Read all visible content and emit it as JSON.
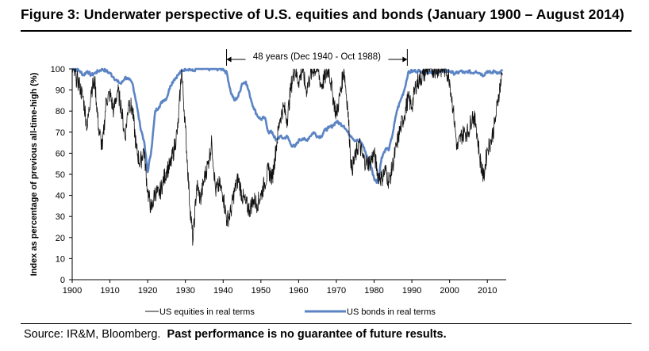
{
  "figure": {
    "title": "Figure 3: Underwater perspective of U.S. equities and bonds (January 1900 – August 2014)"
  },
  "source": {
    "prefix": "Source: IR&M, Bloomberg.",
    "disclaimer": "Past performance is no guarantee of future results."
  },
  "colors": {
    "equities": "#111111",
    "bonds": "#5b84c4",
    "axis": "#000000"
  },
  "chart_data": {
    "type": "line",
    "title": "Underwater perspective of U.S. equities and bonds (January 1900 – August 2014)",
    "xlabel": "",
    "ylabel": "Index as percentage of previous all-time-high (%)",
    "xlim": [
      1900,
      2015
    ],
    "ylim": [
      0,
      100
    ],
    "x_ticks": [
      1900,
      1910,
      1920,
      1930,
      1940,
      1950,
      1960,
      1970,
      1980,
      1990,
      2000,
      2010
    ],
    "y_ticks": [
      0,
      10,
      20,
      30,
      40,
      50,
      60,
      70,
      80,
      90,
      100
    ],
    "grid": false,
    "legend_position": "bottom",
    "annotation": {
      "text": "48 years (Dec 1940 - Oct 1988)",
      "x_start": 1940.9,
      "x_end": 1988.8
    },
    "series": [
      {
        "name": "US equities in real terms",
        "key": "equities",
        "x": [
          1900,
          1901,
          1902,
          1903,
          1904,
          1905,
          1906,
          1907,
          1908,
          1909,
          1910,
          1911,
          1912,
          1913,
          1914,
          1915,
          1916,
          1917,
          1918,
          1919,
          1920,
          1921,
          1922,
          1923,
          1924,
          1925,
          1926,
          1927,
          1928,
          1929,
          1930,
          1931,
          1932,
          1933,
          1934,
          1935,
          1936,
          1937,
          1938,
          1939,
          1940,
          1941,
          1942,
          1943,
          1944,
          1945,
          1946,
          1947,
          1948,
          1949,
          1950,
          1951,
          1952,
          1953,
          1954,
          1955,
          1956,
          1957,
          1958,
          1959,
          1960,
          1961,
          1962,
          1963,
          1964,
          1965,
          1966,
          1967,
          1968,
          1969,
          1970,
          1971,
          1972,
          1973,
          1974,
          1975,
          1976,
          1977,
          1978,
          1979,
          1980,
          1981,
          1982,
          1983,
          1984,
          1985,
          1986,
          1987,
          1988,
          1989,
          1990,
          1991,
          1992,
          1993,
          1994,
          1995,
          1996,
          1997,
          1998,
          1999,
          2000,
          2001,
          2002,
          2003,
          2004,
          2005,
          2006,
          2007,
          2008,
          2009,
          2010,
          2011,
          2012,
          2013,
          2014
        ],
        "y": [
          100,
          96,
          92,
          85,
          72,
          90,
          94,
          72,
          62,
          85,
          88,
          80,
          90,
          82,
          67,
          85,
          80,
          62,
          55,
          62,
          42,
          33,
          42,
          40,
          46,
          52,
          54,
          62,
          72,
          100,
          72,
          40,
          18,
          45,
          38,
          48,
          55,
          65,
          42,
          45,
          40,
          28,
          32,
          42,
          48,
          40,
          36,
          33,
          38,
          36,
          40,
          46,
          52,
          48,
          62,
          76,
          82,
          76,
          92,
          100,
          94,
          100,
          90,
          96,
          100,
          100,
          92,
          96,
          100,
          88,
          78,
          88,
          100,
          82,
          52,
          58,
          65,
          58,
          55,
          56,
          60,
          50,
          48,
          52,
          46,
          55,
          64,
          72,
          78,
          86,
          82,
          92,
          95,
          97,
          100,
          100,
          100,
          100,
          100,
          100,
          95,
          80,
          62,
          68,
          70,
          70,
          78,
          74,
          58,
          48,
          62,
          66,
          74,
          88,
          98
        ]
      },
      {
        "name": "US bonds in real terms",
        "key": "bonds",
        "x": [
          1900,
          1901,
          1902,
          1903,
          1904,
          1905,
          1906,
          1907,
          1908,
          1909,
          1910,
          1911,
          1912,
          1913,
          1914,
          1915,
          1916,
          1917,
          1918,
          1919,
          1920,
          1921,
          1922,
          1923,
          1924,
          1925,
          1926,
          1927,
          1928,
          1929,
          1930,
          1931,
          1932,
          1933,
          1934,
          1935,
          1936,
          1937,
          1938,
          1939,
          1940,
          1941,
          1942,
          1943,
          1944,
          1945,
          1946,
          1947,
          1948,
          1949,
          1950,
          1951,
          1952,
          1953,
          1954,
          1955,
          1956,
          1957,
          1958,
          1959,
          1960,
          1961,
          1962,
          1963,
          1964,
          1965,
          1966,
          1967,
          1968,
          1969,
          1970,
          1971,
          1972,
          1973,
          1974,
          1975,
          1976,
          1977,
          1978,
          1979,
          1980,
          1981,
          1982,
          1983,
          1984,
          1985,
          1986,
          1987,
          1988,
          1989,
          1990,
          1991,
          1992,
          1993,
          1994,
          1995,
          1996,
          1997,
          1998,
          1999,
          2000,
          2001,
          2002,
          2003,
          2004,
          2005,
          2006,
          2007,
          2008,
          2009,
          2010,
          2011,
          2012,
          2013,
          2014
        ],
        "y": [
          100,
          100,
          99,
          97,
          99,
          97,
          98,
          99,
          100,
          99,
          98,
          96,
          94,
          93,
          96,
          95,
          93,
          84,
          73,
          66,
          51,
          62,
          80,
          82,
          85,
          86,
          92,
          95,
          97,
          99,
          100,
          100,
          99,
          100,
          100,
          100,
          100,
          100,
          100,
          100,
          100,
          98,
          89,
          85,
          87,
          93,
          94,
          88,
          82,
          78,
          76,
          77,
          70,
          70,
          66,
          68,
          67,
          68,
          64,
          63,
          66,
          67,
          66,
          68,
          70,
          68,
          68,
          71,
          72,
          73,
          75,
          74,
          73,
          70,
          68,
          66,
          66,
          64,
          59,
          55,
          48,
          46,
          58,
          62,
          62,
          70,
          80,
          85,
          90,
          98,
          99,
          99,
          99,
          99,
          98,
          99,
          98,
          99,
          99,
          99,
          99,
          98,
          98,
          99,
          98,
          99,
          98,
          99,
          98,
          97,
          99,
          98,
          99,
          98,
          99
        ]
      }
    ]
  }
}
